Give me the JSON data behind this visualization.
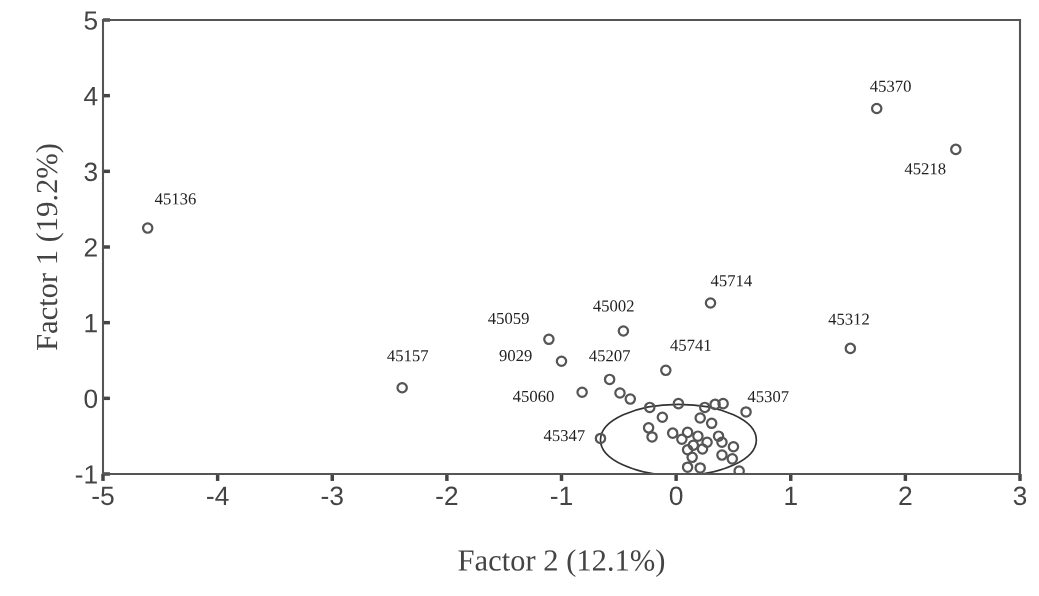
{
  "chart_data": {
    "type": "scatter",
    "xlabel": "Factor 2 (12.1%)",
    "ylabel": "Factor 1 (19.2%)",
    "xlim": [
      -5,
      3
    ],
    "ylim": [
      -1,
      5
    ],
    "xticks": [
      -5,
      -4,
      -3,
      -2,
      -1,
      0,
      1,
      2,
      3
    ],
    "yticks": [
      -1,
      0,
      1,
      2,
      3,
      4,
      5
    ],
    "grid": false,
    "legend": false,
    "marker": "circle",
    "series": [
      {
        "color": "#555555",
        "x": [
          -4.61,
          1.75,
          2.44,
          0.3,
          -0.46,
          -1.11,
          -1.0,
          -0.58,
          -0.09,
          1.52,
          -2.39,
          -0.82,
          0.61,
          -0.66,
          -0.49,
          -0.4,
          -0.23,
          0.02,
          -0.12,
          0.25,
          0.34,
          0.41,
          0.21,
          0.31,
          -0.24,
          -0.21,
          -0.03,
          0.05,
          0.1,
          0.19,
          0.27,
          0.37,
          0.4,
          0.15,
          0.1,
          0.23,
          0.4,
          0.5,
          0.14,
          0.49,
          0.1,
          0.21,
          0.55
        ],
        "values": [
          2.25,
          3.83,
          3.29,
          1.26,
          0.89,
          0.78,
          0.49,
          0.25,
          0.37,
          0.66,
          0.14,
          0.08,
          -0.18,
          -0.53,
          0.07,
          -0.01,
          -0.12,
          -0.07,
          -0.25,
          -0.12,
          -0.08,
          -0.07,
          -0.26,
          -0.33,
          -0.39,
          -0.51,
          -0.46,
          -0.54,
          -0.45,
          -0.5,
          -0.58,
          -0.5,
          -0.58,
          -0.62,
          -0.68,
          -0.67,
          -0.75,
          -0.64,
          -0.78,
          -0.8,
          -0.91,
          -0.92,
          -0.96
        ]
      }
    ],
    "annotations": [
      {
        "text": "45136",
        "x": -4.61,
        "y": 2.25
      },
      {
        "text": "45370",
        "x": 1.75,
        "y": 3.83
      },
      {
        "text": "45218",
        "x": 2.44,
        "y": 3.29
      },
      {
        "text": "45714",
        "x": 0.3,
        "y": 1.26
      },
      {
        "text": "45002",
        "x": -0.46,
        "y": 0.89
      },
      {
        "text": "45059",
        "x": -1.11,
        "y": 0.78
      },
      {
        "text": "9029",
        "x": -1.0,
        "y": 0.49
      },
      {
        "text": "45207",
        "x": -0.58,
        "y": 0.25
      },
      {
        "text": "45741",
        "x": -0.09,
        "y": 0.37
      },
      {
        "text": "45312",
        "x": 1.52,
        "y": 0.66
      },
      {
        "text": "45157",
        "x": -2.39,
        "y": 0.14
      },
      {
        "text": "45060",
        "x": -0.82,
        "y": 0.08
      },
      {
        "text": "45307",
        "x": 0.61,
        "y": -0.18
      },
      {
        "text": "45347",
        "x": -0.66,
        "y": -0.53
      }
    ]
  }
}
